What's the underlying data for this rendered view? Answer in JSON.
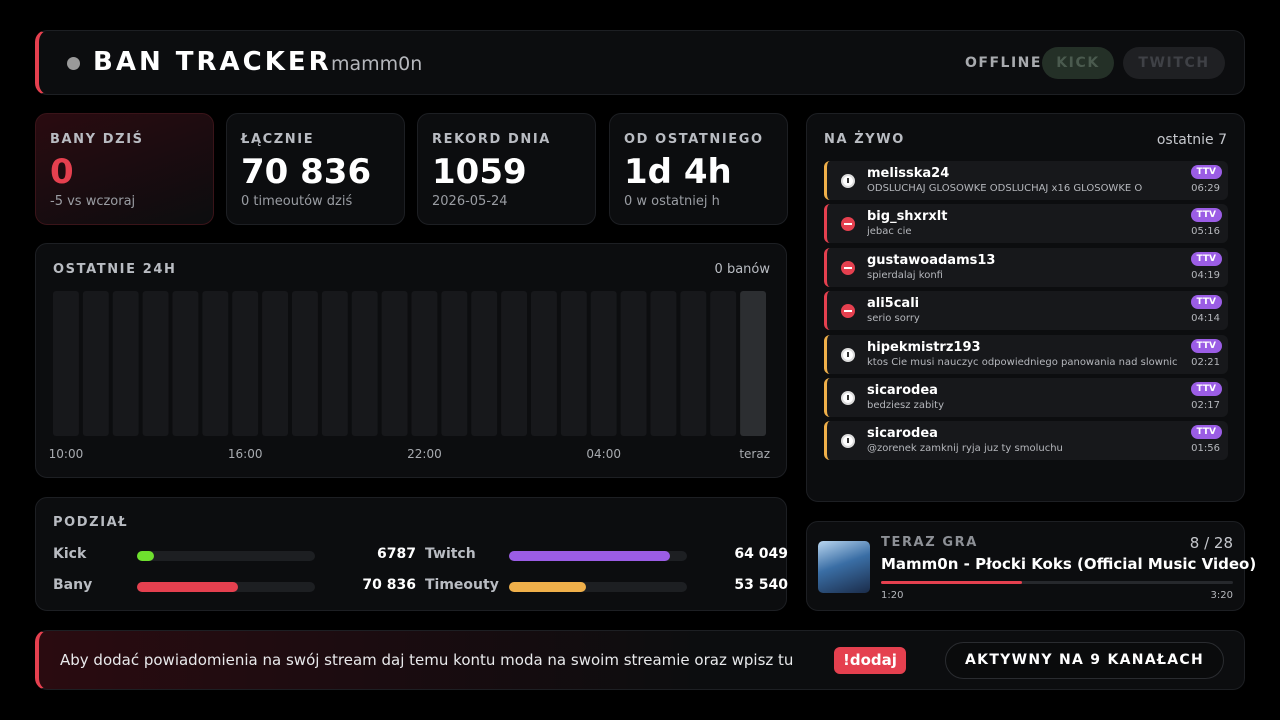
{
  "header": {
    "title": "BAN TRACKER",
    "user": "mamm0n",
    "status": "OFFLINE",
    "buttons": [
      "KICK",
      "TWITCH"
    ]
  },
  "stats": [
    {
      "label": "BANY DZIŚ",
      "value": "0",
      "sub": "-5 vs wczoraj"
    },
    {
      "label": "ŁĄCZNIE",
      "value": "70 836",
      "sub": "0 timeoutów dziś"
    },
    {
      "label": "REKORD DNIA",
      "value": "1059",
      "sub": "2026-05-24"
    },
    {
      "label": "OD OSTATNIEGO",
      "value": "1d 4h",
      "sub": "0 w ostatniej h"
    }
  ],
  "last24h": {
    "title": "OSTATNIE 24H",
    "total": "0 banów",
    "values": [
      0,
      0,
      0,
      0,
      0,
      0,
      0,
      0,
      0,
      0,
      0,
      0,
      0,
      0,
      0,
      0,
      0,
      0,
      0,
      0,
      0,
      0,
      0,
      0
    ],
    "x_labels": [
      "10:00",
      "16:00",
      "22:00",
      "04:00",
      "teraz"
    ]
  },
  "split": {
    "title": "PODZIAŁ",
    "groups": [
      {
        "items": [
          {
            "name": "Kick",
            "value": 6787,
            "color": "#6ee02e"
          },
          {
            "name": "Twitch",
            "value": {
              "value": 64049,
              "label": "64 049"
            },
            "color": "#9b5de5"
          }
        ]
      },
      {
        "items": [
          {
            "name": "Bany",
            "value": {
              "value": 70836,
              "label": "70 836"
            },
            "color": "#e5404f"
          },
          {
            "name": "Timeouty",
            "value": {
              "value": 53540,
              "label": "53 540"
            },
            "color": "#f0b04a"
          }
        ]
      }
    ]
  },
  "live": {
    "title": "NA ŻYWO",
    "count_label": "ostatnie 7",
    "items": [
      {
        "user": "melisska24",
        "message": "ODSLUCHAJ GLOSOWKE ODSLUCHAJ x16 GLOSOWKE O",
        "time": "06:29",
        "badge": "TTV",
        "kind": "timeout"
      },
      {
        "user": "big_shxrxlt",
        "message": "jebac cie",
        "time": "05:16",
        "badge": "TTV",
        "kind": "ban"
      },
      {
        "user": "gustawoadams13",
        "message": "spierdalaj konfi",
        "time": "04:19",
        "badge": "TTV",
        "kind": "ban"
      },
      {
        "user": "ali5cali",
        "message": "serio sorry",
        "time": "04:14",
        "badge": "TTV",
        "kind": "ban"
      },
      {
        "user": "hipekmistrz193",
        "message": "ktos Cie musi nauczyc odpowiedniego panowania nad slownictwem",
        "time": "02:21",
        "badge": "TTV",
        "kind": "timeout"
      },
      {
        "user": "sicarodea",
        "message": "bedziesz zabity",
        "time": "02:17",
        "badge": "TTV",
        "kind": "timeout"
      },
      {
        "user": "sicarodea",
        "message": "@zorenek zamknij ryja juz ty smoluchu",
        "time": "01:56",
        "badge": "TTV",
        "kind": "timeout"
      }
    ]
  },
  "now_playing": {
    "label": "TERAZ GRA",
    "position": "8 / 28",
    "title": "Mamm0n - Płocki Koks (Official Music Video)",
    "elapsed": "1:20",
    "duration": "3:20"
  },
  "footer": {
    "text": "Aby dodać powiadomienia na swój stream daj temu kontu moda na swoim streamie oraz wpisz tu",
    "command": "!dodaj",
    "badge": "AKTYWNY NA 9 KANAŁACH"
  }
}
